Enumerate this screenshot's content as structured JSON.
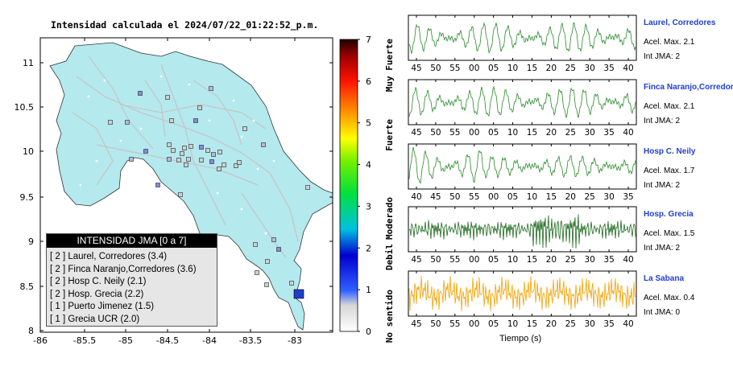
{
  "map": {
    "title": "Intensidad calculada el 2024/07/22_01:22:52_p.m.",
    "xticks": [
      "-86",
      "-85.5",
      "-85",
      "-84.5",
      "-84",
      "-83.5",
      "-83"
    ],
    "yticks": [
      "11",
      "10.5",
      "10",
      "9.5",
      "9",
      "8.5",
      "8"
    ],
    "legend_title": "INTENSIDAD JMA [0 a 7]",
    "legend_items": [
      "[ 2 ]  Laurel, Corredores (3.4)",
      "[ 2 ]  Finca Naranjo,Corredores (3.6)",
      "[ 2 ]  Hosp C. Neily (2.1)",
      "[ 2 ]  Hosp. Grecia (2.2)",
      "[ 1 ]  Puerto Jimenez (1.5)",
      "[ 1 ]  Grecia UCR (2.0)"
    ],
    "colors": {
      "land": "#b4e9ee",
      "roads": "#c6c6c6",
      "station": "#a8a8c8",
      "epicenter": "#1f3ec8"
    }
  },
  "colorbar": {
    "ticks": [
      "7",
      "6",
      "5",
      "4",
      "3",
      "2",
      "1",
      "0"
    ],
    "labels": [
      "Muy Fuerte",
      "Fuerte",
      "Moderado",
      "Debil",
      "No sentido"
    ]
  },
  "traces": [
    {
      "name": "Laurel, Corredores",
      "acel": "Acel. Max. 2.1",
      "int": "Int JMA: 2",
      "ticks": [
        "45",
        "50",
        "55",
        "00",
        "05",
        "10",
        "15",
        "20",
        "25",
        "30",
        "35",
        "40"
      ],
      "color": "#2a8a2a"
    },
    {
      "name": "Finca Naranjo,Corredores",
      "acel": "Acel. Max. 2.1",
      "int": "Int JMA: 2",
      "ticks": [
        "45",
        "50",
        "55",
        "00",
        "05",
        "10",
        "15",
        "20",
        "25",
        "30",
        "35",
        "40"
      ],
      "color": "#2a8a2a"
    },
    {
      "name": "Hosp C. Neily",
      "acel": "Acel. Max. 1.7",
      "int": "Int JMA: 2",
      "ticks": [
        "40",
        "45",
        "50",
        "55",
        "00",
        "05",
        "10",
        "15",
        "20",
        "25",
        "30",
        "35"
      ],
      "color": "#2a8a2a"
    },
    {
      "name": "Hosp. Grecia",
      "acel": "Acel. Max. 1.5",
      "int": "Int JMA: 2",
      "ticks": [
        "45",
        "50",
        "55",
        "00",
        "05",
        "10",
        "15",
        "20",
        "25",
        "30",
        "35",
        "40"
      ],
      "color": "#1e6a1e"
    },
    {
      "name": "La Sabana",
      "acel": "Acel. Max. 0.4",
      "int": "Int JMA: 0",
      "ticks": [
        "45",
        "50",
        "55",
        "00",
        "05",
        "10",
        "15",
        "20",
        "25",
        "30",
        "35",
        "40"
      ],
      "color": "#f2a000"
    }
  ],
  "xlabel": "Tiempo (s)",
  "chart_data": [
    {
      "type": "scatter",
      "title": "Intensidad calculada el 2024/07/22_01:22:52_p.m.",
      "xlim": [
        -86,
        -82.6
      ],
      "ylim": [
        8,
        11.3
      ],
      "points": [
        {
          "label": "Laurel, Corredores",
          "intensity": 2
        },
        {
          "label": "Finca Naranjo,Corredores",
          "intensity": 2
        },
        {
          "label": "Hosp C. Neily",
          "intensity": 2
        },
        {
          "label": "Hosp. Grecia",
          "intensity": 2
        },
        {
          "label": "Puerto Jimenez",
          "intensity": 1
        },
        {
          "label": "Grecia UCR",
          "intensity": 1
        }
      ],
      "colorbar_range": [
        0,
        7
      ]
    },
    {
      "type": "line",
      "xlabel": "Tiempo (s)",
      "series": [
        {
          "name": "Laurel, Corredores",
          "peak": 2.1
        },
        {
          "name": "Finca Naranjo,Corredores",
          "peak": 2.1
        },
        {
          "name": "Hosp C. Neily",
          "peak": 1.7
        },
        {
          "name": "Hosp. Grecia",
          "peak": 1.5
        },
        {
          "name": "La Sabana",
          "peak": 0.4
        }
      ]
    }
  ]
}
